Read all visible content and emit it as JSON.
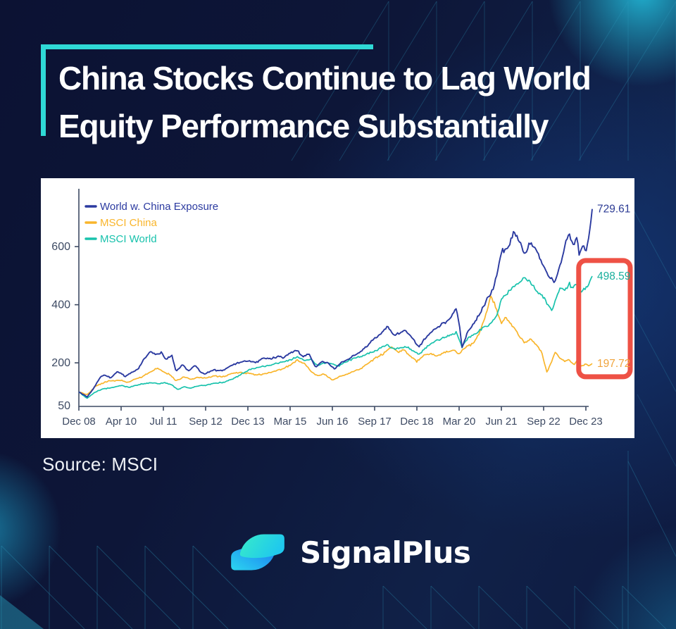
{
  "header": {
    "title_line1": "China Stocks Continue to Lag World",
    "title_line2": "Equity Performance Substantially"
  },
  "source_label": "Source: MSCI",
  "brand_name": "SignalPlus",
  "colors": {
    "accent_teal": "#2fd9d6",
    "panel_bg": "#ffffff",
    "axis": "#3d4a63",
    "tick_label": "#3d4a63",
    "pattern_line": "#2f9dbf",
    "pattern_fill": "#2596b4",
    "highlight_box": "#ee5145",
    "logo_gradient_top": "#34e9c6",
    "logo_gradient_mid": "#22c5ec",
    "logo_gradient_bottom": "#1b7ef2"
  },
  "chart_data": {
    "type": "line",
    "grid": false,
    "legend_position": "top-left",
    "x_tick_labels": [
      "Dec 08",
      "Apr 10",
      "Jul 11",
      "Sep 12",
      "Dec 13",
      "Mar 15",
      "Jun 16",
      "Sep 17",
      "Dec 18",
      "Mar 20",
      "Jun 21",
      "Sep 22",
      "Dec 23"
    ],
    "y_tick_values": [
      200,
      400,
      600
    ],
    "y_axis_min_label": "50",
    "y_axis_min": 50,
    "highlight_box": {
      "t_from": 11.83,
      "t_to": 13.05,
      "v_from": 152,
      "v_to": 552
    },
    "series": [
      {
        "name": "World w. China Exposure",
        "color": "#2b3aa0",
        "end_label": "729.61",
        "end_label_color": "#2c3b94",
        "end_value": 729.61,
        "anchors": [
          [
            0,
            100
          ],
          [
            0.12,
            90
          ],
          [
            0.2,
            83
          ],
          [
            0.35,
            112
          ],
          [
            0.5,
            150
          ],
          [
            0.6,
            158
          ],
          [
            0.75,
            148
          ],
          [
            0.9,
            170
          ],
          [
            1.0,
            165
          ],
          [
            1.1,
            152
          ],
          [
            1.25,
            168
          ],
          [
            1.4,
            178
          ],
          [
            1.55,
            215
          ],
          [
            1.7,
            240
          ],
          [
            1.8,
            228
          ],
          [
            1.95,
            235
          ],
          [
            2.05,
            212
          ],
          [
            2.2,
            225
          ],
          [
            2.3,
            170
          ],
          [
            2.45,
            195
          ],
          [
            2.6,
            172
          ],
          [
            2.75,
            192
          ],
          [
            2.9,
            165
          ],
          [
            3.0,
            163
          ],
          [
            3.2,
            175
          ],
          [
            3.4,
            172
          ],
          [
            3.6,
            190
          ],
          [
            3.8,
            202
          ],
          [
            4.0,
            207
          ],
          [
            4.2,
            200
          ],
          [
            4.35,
            218
          ],
          [
            4.5,
            212
          ],
          [
            4.7,
            222
          ],
          [
            4.85,
            218
          ],
          [
            5.0,
            235
          ],
          [
            5.18,
            242
          ],
          [
            5.3,
            222
          ],
          [
            5.45,
            232
          ],
          [
            5.6,
            185
          ],
          [
            5.75,
            205
          ],
          [
            5.9,
            198
          ],
          [
            6.05,
            178
          ],
          [
            6.2,
            200
          ],
          [
            6.35,
            210
          ],
          [
            6.5,
            225
          ],
          [
            6.7,
            242
          ],
          [
            6.85,
            262
          ],
          [
            7.0,
            285
          ],
          [
            7.15,
            300
          ],
          [
            7.3,
            325
          ],
          [
            7.45,
            295
          ],
          [
            7.6,
            302
          ],
          [
            7.75,
            312
          ],
          [
            7.9,
            282
          ],
          [
            8.05,
            255
          ],
          [
            8.25,
            295
          ],
          [
            8.5,
            325
          ],
          [
            8.7,
            340
          ],
          [
            8.93,
            388
          ],
          [
            9.0,
            342
          ],
          [
            9.07,
            253
          ],
          [
            9.2,
            305
          ],
          [
            9.35,
            338
          ],
          [
            9.5,
            372
          ],
          [
            9.65,
            415
          ],
          [
            9.8,
            450
          ],
          [
            9.9,
            505
          ],
          [
            10.0,
            585
          ],
          [
            10.15,
            595
          ],
          [
            10.3,
            650
          ],
          [
            10.45,
            610
          ],
          [
            10.55,
            570
          ],
          [
            10.68,
            610
          ],
          [
            10.8,
            596
          ],
          [
            10.95,
            545
          ],
          [
            11.1,
            505
          ],
          [
            11.25,
            474
          ],
          [
            11.35,
            520
          ],
          [
            11.5,
            598
          ],
          [
            11.6,
            650
          ],
          [
            11.7,
            600
          ],
          [
            11.78,
            638
          ],
          [
            11.85,
            570
          ],
          [
            11.92,
            610
          ],
          [
            12.0,
            585
          ],
          [
            12.08,
            635
          ],
          [
            12.15,
            729.61
          ]
        ]
      },
      {
        "name": "MSCI China",
        "color": "#f9b52b",
        "end_label": "197.72",
        "end_label_color": "#f0a43c",
        "end_value": 197.72,
        "anchors": [
          [
            0,
            100
          ],
          [
            0.12,
            94
          ],
          [
            0.2,
            90
          ],
          [
            0.4,
            120
          ],
          [
            0.7,
            138
          ],
          [
            1.0,
            140
          ],
          [
            1.15,
            132
          ],
          [
            1.3,
            142
          ],
          [
            1.5,
            152
          ],
          [
            1.7,
            170
          ],
          [
            1.85,
            183
          ],
          [
            2.0,
            170
          ],
          [
            2.15,
            160
          ],
          [
            2.3,
            138
          ],
          [
            2.5,
            152
          ],
          [
            2.65,
            143
          ],
          [
            2.8,
            150
          ],
          [
            3.0,
            148
          ],
          [
            3.2,
            155
          ],
          [
            3.4,
            152
          ],
          [
            3.6,
            162
          ],
          [
            3.8,
            166
          ],
          [
            4.0,
            165
          ],
          [
            4.2,
            158
          ],
          [
            4.4,
            163
          ],
          [
            4.6,
            170
          ],
          [
            4.8,
            178
          ],
          [
            5.0,
            192
          ],
          [
            5.18,
            210
          ],
          [
            5.35,
            196
          ],
          [
            5.5,
            170
          ],
          [
            5.65,
            155
          ],
          [
            5.8,
            162
          ],
          [
            6.0,
            141
          ],
          [
            6.15,
            150
          ],
          [
            6.3,
            158
          ],
          [
            6.5,
            170
          ],
          [
            6.7,
            182
          ],
          [
            6.85,
            198
          ],
          [
            7.0,
            214
          ],
          [
            7.2,
            232
          ],
          [
            7.4,
            254
          ],
          [
            7.55,
            238
          ],
          [
            7.7,
            246
          ],
          [
            7.85,
            222
          ],
          [
            8.0,
            204
          ],
          [
            8.15,
            224
          ],
          [
            8.3,
            232
          ],
          [
            8.5,
            224
          ],
          [
            8.7,
            238
          ],
          [
            8.9,
            242
          ],
          [
            9.0,
            228
          ],
          [
            9.07,
            244
          ],
          [
            9.2,
            258
          ],
          [
            9.35,
            268
          ],
          [
            9.5,
            310
          ],
          [
            9.65,
            372
          ],
          [
            9.75,
            432
          ],
          [
            9.85,
            398
          ],
          [
            10.0,
            335
          ],
          [
            10.1,
            358
          ],
          [
            10.25,
            328
          ],
          [
            10.4,
            298
          ],
          [
            10.55,
            268
          ],
          [
            10.7,
            283
          ],
          [
            10.85,
            258
          ],
          [
            10.95,
            238
          ],
          [
            11.0,
            210
          ],
          [
            11.08,
            166
          ],
          [
            11.18,
            200
          ],
          [
            11.27,
            237
          ],
          [
            11.4,
            215
          ],
          [
            11.5,
            205
          ],
          [
            11.6,
            212
          ],
          [
            11.7,
            194
          ],
          [
            11.8,
            205
          ],
          [
            11.9,
            188
          ],
          [
            12.0,
            196
          ],
          [
            12.08,
            190
          ],
          [
            12.15,
            197.72
          ]
        ]
      },
      {
        "name": "MSCI World",
        "color": "#18c2ac",
        "end_label": "498.59",
        "end_label_color": "#1aaf9d",
        "end_value": 498.59,
        "anchors": [
          [
            0,
            100
          ],
          [
            0.12,
            86
          ],
          [
            0.2,
            78
          ],
          [
            0.35,
            96
          ],
          [
            0.55,
            110
          ],
          [
            0.75,
            114
          ],
          [
            1.0,
            122
          ],
          [
            1.2,
            116
          ],
          [
            1.45,
            126
          ],
          [
            1.7,
            132
          ],
          [
            1.9,
            128
          ],
          [
            2.05,
            132
          ],
          [
            2.2,
            124
          ],
          [
            2.35,
            108
          ],
          [
            2.5,
            118
          ],
          [
            2.65,
            113
          ],
          [
            2.8,
            121
          ],
          [
            3.0,
            122
          ],
          [
            3.2,
            129
          ],
          [
            3.45,
            134
          ],
          [
            3.7,
            148
          ],
          [
            4.0,
            175
          ],
          [
            4.25,
            185
          ],
          [
            4.5,
            192
          ],
          [
            4.75,
            200
          ],
          [
            5.0,
            210
          ],
          [
            5.18,
            221
          ],
          [
            5.35,
            208
          ],
          [
            5.5,
            212
          ],
          [
            5.65,
            190
          ],
          [
            5.8,
            200
          ],
          [
            6.0,
            196
          ],
          [
            6.15,
            188
          ],
          [
            6.3,
            202
          ],
          [
            6.5,
            215
          ],
          [
            6.7,
            224
          ],
          [
            6.85,
            232
          ],
          [
            7.0,
            240
          ],
          [
            7.15,
            252
          ],
          [
            7.3,
            262
          ],
          [
            7.45,
            246
          ],
          [
            7.6,
            252
          ],
          [
            7.75,
            257
          ],
          [
            7.9,
            242
          ],
          [
            8.05,
            230
          ],
          [
            8.25,
            256
          ],
          [
            8.5,
            280
          ],
          [
            8.7,
            290
          ],
          [
            8.93,
            304
          ],
          [
            9.0,
            282
          ],
          [
            9.07,
            254
          ],
          [
            9.2,
            284
          ],
          [
            9.35,
            299
          ],
          [
            9.5,
            312
          ],
          [
            9.65,
            326
          ],
          [
            9.8,
            342
          ],
          [
            9.9,
            368
          ],
          [
            10.0,
            420
          ],
          [
            10.15,
            440
          ],
          [
            10.3,
            465
          ],
          [
            10.45,
            480
          ],
          [
            10.55,
            495
          ],
          [
            10.68,
            478
          ],
          [
            10.8,
            452
          ],
          [
            10.95,
            432
          ],
          [
            11.1,
            400
          ],
          [
            11.2,
            378
          ],
          [
            11.3,
            425
          ],
          [
            11.4,
            460
          ],
          [
            11.5,
            448
          ],
          [
            11.6,
            470
          ],
          [
            11.7,
            460
          ],
          [
            11.8,
            474
          ],
          [
            11.88,
            446
          ],
          [
            11.96,
            456
          ],
          [
            12.05,
            466
          ],
          [
            12.15,
            498.59
          ]
        ]
      }
    ]
  }
}
